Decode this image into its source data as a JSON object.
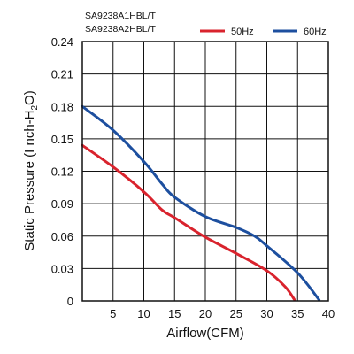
{
  "chart_data": {
    "type": "line",
    "models": [
      "SA9238A1HBL/T",
      "SA9238A2HBL/T"
    ],
    "xlabel": "Airflow(CFM)",
    "ylabel": "Static Pressure",
    "ylabel_unit": "I nch-H",
    "ylabel_sub": "2",
    "ylabel_tail": "O",
    "xlim": [
      0,
      40
    ],
    "ylim": [
      0,
      0.24
    ],
    "x_ticks": [
      "5",
      "10",
      "15",
      "20",
      "25",
      "30",
      "35",
      "40"
    ],
    "x_tick_values": [
      5,
      10,
      15,
      20,
      25,
      30,
      35,
      40
    ],
    "y_ticks": [
      "0",
      "0.03",
      "0.06",
      "0.09",
      "0.12",
      "0.15",
      "0.18",
      "0.21",
      "0.24"
    ],
    "y_tick_values": [
      0,
      0.03,
      0.06,
      0.09,
      0.12,
      0.15,
      0.18,
      0.21,
      0.24
    ],
    "x_grid_step": 5,
    "y_grid_step": 0.03,
    "grid": true,
    "legend_position": "top-right",
    "series": [
      {
        "name": "50Hz",
        "color": "#d9232d",
        "points": [
          [
            0,
            0.144
          ],
          [
            5,
            0.124
          ],
          [
            10,
            0.101
          ],
          [
            13,
            0.084
          ],
          [
            15,
            0.077
          ],
          [
            20,
            0.059
          ],
          [
            25,
            0.044
          ],
          [
            30,
            0.028
          ],
          [
            33,
            0.013
          ],
          [
            34.5,
            0.001
          ]
        ]
      },
      {
        "name": "60Hz",
        "color": "#1d4f9f",
        "points": [
          [
            0,
            0.18
          ],
          [
            5,
            0.158
          ],
          [
            10,
            0.129
          ],
          [
            13,
            0.108
          ],
          [
            15,
            0.096
          ],
          [
            20,
            0.078
          ],
          [
            25,
            0.068
          ],
          [
            28,
            0.06
          ],
          [
            30,
            0.051
          ],
          [
            35,
            0.026
          ],
          [
            38.5,
            0.001
          ]
        ]
      }
    ]
  }
}
